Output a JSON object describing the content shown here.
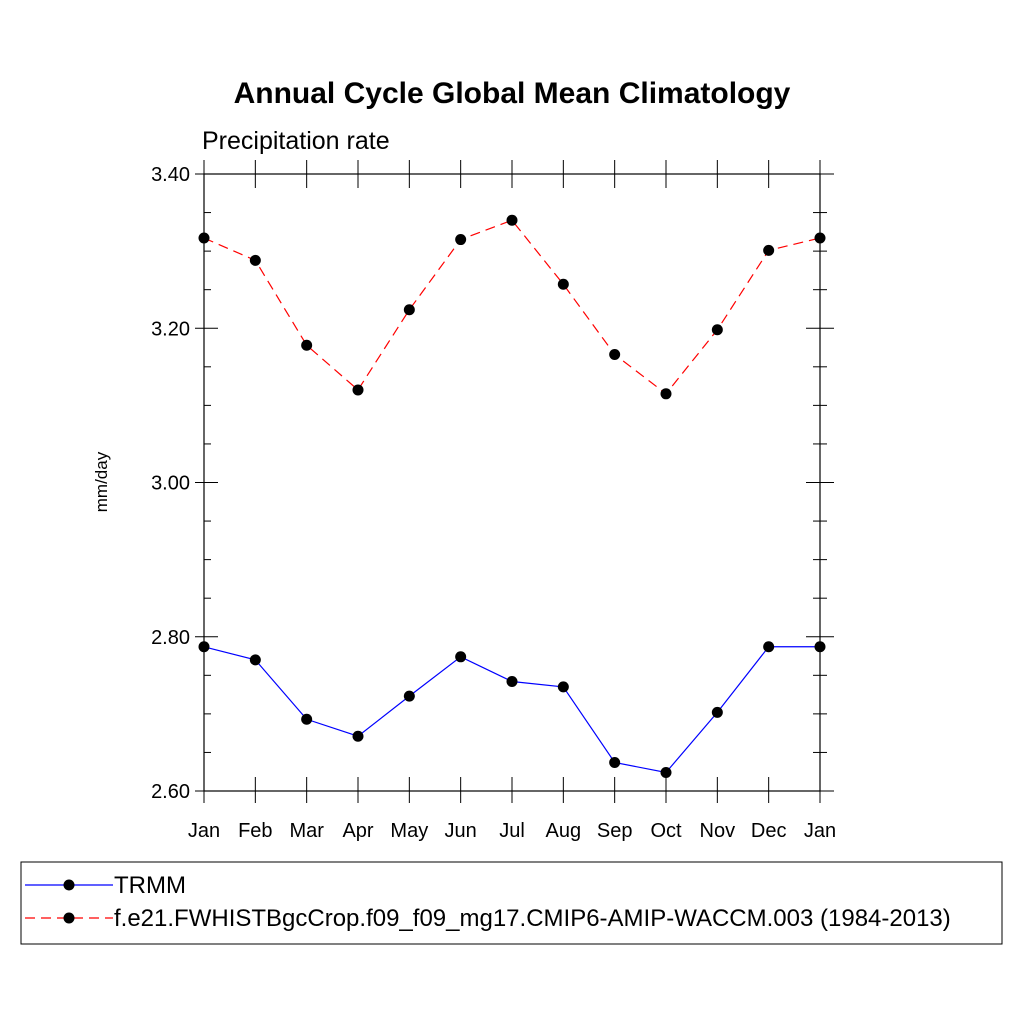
{
  "chart_data": {
    "type": "line",
    "title": "Annual Cycle Global Mean Climatology",
    "subtitle": "Precipitation rate",
    "xlabel": "",
    "ylabel": "mm/day",
    "categories": [
      "Jan",
      "Feb",
      "Mar",
      "Apr",
      "May",
      "Jun",
      "Jul",
      "Aug",
      "Sep",
      "Oct",
      "Nov",
      "Dec",
      "Jan"
    ],
    "ylim": [
      2.6,
      3.4
    ],
    "yticks": [
      "2.60",
      "2.80",
      "3.00",
      "3.20",
      "3.40"
    ],
    "ytick_values": [
      2.6,
      2.8,
      3.0,
      3.2,
      3.4
    ],
    "grid": false,
    "legend_position": "bottom",
    "series": [
      {
        "name": "TRMM",
        "color": "#0000ff",
        "dash": "solid",
        "marker_color": "#000000",
        "values": [
          2.787,
          2.77,
          2.693,
          2.671,
          2.723,
          2.774,
          2.742,
          2.735,
          2.637,
          2.624,
          2.702,
          2.787,
          2.787
        ]
      },
      {
        "name": "f.e21.FWHISTBgcCrop.f09_f09_mg17.CMIP6-AMIP-WACCM.003 (1984-2013)",
        "color": "#ff0000",
        "dash": "dashed",
        "marker_color": "#000000",
        "values": [
          3.317,
          3.288,
          3.178,
          3.12,
          3.224,
          3.315,
          3.34,
          3.257,
          3.166,
          3.115,
          3.198,
          3.301,
          3.317
        ]
      }
    ]
  }
}
